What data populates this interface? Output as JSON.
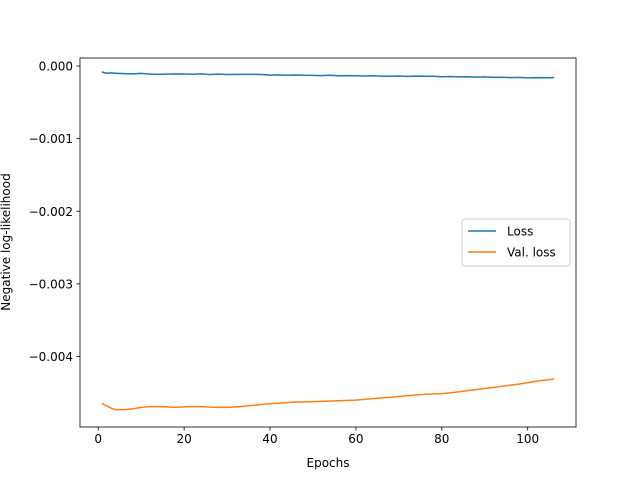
{
  "chart_data": {
    "type": "line",
    "title": "",
    "xlabel": "Epochs",
    "ylabel": "Negative log-likelihood",
    "xlim": [
      -4.25,
      111.25
    ],
    "ylim": [
      -0.00497,
      0.00011
    ],
    "xticks": [
      0,
      20,
      40,
      60,
      80,
      100
    ],
    "xtick_labels": [
      "0",
      "20",
      "40",
      "60",
      "80",
      "100"
    ],
    "yticks": [
      0.0,
      -0.001,
      -0.002,
      -0.003,
      -0.004
    ],
    "ytick_labels": [
      "0.000",
      "−0.001",
      "−0.002",
      "−0.003",
      "−0.004"
    ],
    "grid": false,
    "legend_position": "center-right",
    "series": [
      {
        "name": "Loss",
        "color": "#1f77b4",
        "x": [
          1,
          2,
          3,
          4,
          6,
          8,
          10,
          12,
          14,
          16,
          18,
          20,
          22,
          24,
          26,
          28,
          30,
          32,
          34,
          36,
          38,
          40,
          42,
          44,
          46,
          48,
          50,
          52,
          54,
          56,
          58,
          60,
          62,
          64,
          66,
          68,
          70,
          72,
          74,
          76,
          78,
          80,
          82,
          84,
          86,
          88,
          90,
          92,
          94,
          96,
          98,
          100,
          102,
          104,
          106
        ],
        "y": [
          -8.5e-05,
          -0.0001,
          -9.5e-05,
          -0.0001,
          -0.000105,
          -0.000108,
          -0.000102,
          -0.000112,
          -0.000115,
          -0.000112,
          -0.000108,
          -0.00011,
          -0.000113,
          -0.000108,
          -0.000118,
          -0.000112,
          -0.000118,
          -0.000115,
          -0.000116,
          -0.000115,
          -0.000118,
          -0.000125,
          -0.000122,
          -0.000128,
          -0.000124,
          -0.000128,
          -0.000129,
          -0.000132,
          -0.000128,
          -0.000134,
          -0.000132,
          -0.000135,
          -0.000138,
          -0.000135,
          -0.000139,
          -0.000141,
          -0.000138,
          -0.000143,
          -0.000139,
          -0.000142,
          -0.000141,
          -0.000148,
          -0.000145,
          -0.00015,
          -0.000148,
          -0.000153,
          -0.00015,
          -0.000157,
          -0.000155,
          -0.00016,
          -0.000157,
          -0.000163,
          -0.00016,
          -0.000162,
          -0.00016
        ]
      },
      {
        "name": "Val. loss",
        "color": "#ff7f0e",
        "x": [
          1,
          2,
          3,
          4,
          6,
          8,
          10,
          12,
          15,
          18,
          21,
          24,
          27,
          30,
          33,
          36,
          40,
          45,
          50,
          55,
          60,
          64,
          68,
          72,
          76,
          80,
          82,
          86,
          90,
          94,
          98,
          102,
          106
        ],
        "y": [
          -0.00465,
          -0.00468,
          -0.00471,
          -0.00473,
          -0.00473,
          -0.00472,
          -0.0047,
          -0.00469,
          -0.00469,
          -0.0047,
          -0.00469,
          -0.00469,
          -0.0047,
          -0.0047,
          -0.00469,
          -0.00467,
          -0.00465,
          -0.00463,
          -0.00462,
          -0.00461,
          -0.0046,
          -0.00458,
          -0.00456,
          -0.00454,
          -0.00452,
          -0.00451,
          -0.0045,
          -0.00447,
          -0.00444,
          -0.00441,
          -0.00438,
          -0.00434,
          -0.00431
        ]
      }
    ]
  }
}
